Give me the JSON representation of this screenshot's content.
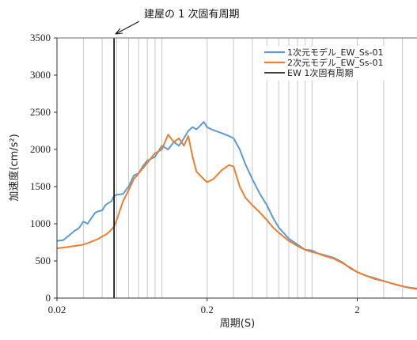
{
  "chart_data": {
    "type": "line",
    "xscale": "log",
    "xlim": [
      0.02,
      5
    ],
    "ylim": [
      0,
      3500
    ],
    "xticks": [
      0.02,
      0.2,
      2
    ],
    "xtick_labels": [
      "0.02",
      "0.2",
      "2"
    ],
    "yticks": [
      0,
      500,
      1000,
      1500,
      2000,
      2500,
      3000,
      3500
    ],
    "xlabel": "周期(S)",
    "ylabel": "加速度(cm/s²)",
    "grid": "vertical log gridlines",
    "legend_position": "top-right",
    "annotation": {
      "text": "建屋の 1 次固有周期",
      "points_to": 0.048
    },
    "vline": {
      "name": "EW 1次固有周期",
      "x": 0.048,
      "color": "#000000"
    },
    "series": [
      {
        "name": "1次元モデル_EW_Ss-01",
        "color": "#5B9BD5",
        "points": [
          [
            0.02,
            770
          ],
          [
            0.022,
            780
          ],
          [
            0.024,
            840
          ],
          [
            0.026,
            900
          ],
          [
            0.028,
            940
          ],
          [
            0.03,
            1030
          ],
          [
            0.032,
            1000
          ],
          [
            0.034,
            1080
          ],
          [
            0.036,
            1150
          ],
          [
            0.038,
            1170
          ],
          [
            0.04,
            1180
          ],
          [
            0.042,
            1250
          ],
          [
            0.044,
            1280
          ],
          [
            0.046,
            1300
          ],
          [
            0.048,
            1370
          ],
          [
            0.05,
            1390
          ],
          [
            0.055,
            1400
          ],
          [
            0.06,
            1500
          ],
          [
            0.065,
            1650
          ],
          [
            0.07,
            1680
          ],
          [
            0.075,
            1780
          ],
          [
            0.08,
            1850
          ],
          [
            0.09,
            1900
          ],
          [
            0.1,
            2050
          ],
          [
            0.11,
            2000
          ],
          [
            0.12,
            2100
          ],
          [
            0.13,
            2050
          ],
          [
            0.14,
            2150
          ],
          [
            0.15,
            2250
          ],
          [
            0.16,
            2300
          ],
          [
            0.17,
            2270
          ],
          [
            0.18,
            2320
          ],
          [
            0.19,
            2370
          ],
          [
            0.2,
            2300
          ],
          [
            0.22,
            2260
          ],
          [
            0.25,
            2220
          ],
          [
            0.28,
            2180
          ],
          [
            0.3,
            2150
          ],
          [
            0.33,
            2000
          ],
          [
            0.36,
            1800
          ],
          [
            0.4,
            1600
          ],
          [
            0.45,
            1400
          ],
          [
            0.5,
            1250
          ],
          [
            0.55,
            1080
          ],
          [
            0.6,
            950
          ],
          [
            0.7,
            800
          ],
          [
            0.8,
            720
          ],
          [
            0.9,
            650
          ],
          [
            1.0,
            640
          ],
          [
            1.1,
            600
          ],
          [
            1.2,
            580
          ],
          [
            1.4,
            540
          ],
          [
            1.6,
            480
          ],
          [
            1.8,
            400
          ],
          [
            2.0,
            350
          ],
          [
            2.3,
            300
          ],
          [
            2.6,
            270
          ],
          [
            3.0,
            230
          ],
          [
            3.5,
            190
          ],
          [
            4.0,
            160
          ],
          [
            4.5,
            135
          ],
          [
            5.0,
            120
          ]
        ]
      },
      {
        "name": "2次元モデル_EW_Ss-01",
        "color": "#ED7D31",
        "points": [
          [
            0.02,
            670
          ],
          [
            0.022,
            680
          ],
          [
            0.024,
            690
          ],
          [
            0.026,
            700
          ],
          [
            0.028,
            710
          ],
          [
            0.03,
            720
          ],
          [
            0.032,
            740
          ],
          [
            0.034,
            760
          ],
          [
            0.036,
            780
          ],
          [
            0.038,
            800
          ],
          [
            0.04,
            830
          ],
          [
            0.042,
            850
          ],
          [
            0.044,
            880
          ],
          [
            0.046,
            920
          ],
          [
            0.048,
            960
          ],
          [
            0.05,
            1050
          ],
          [
            0.055,
            1300
          ],
          [
            0.06,
            1450
          ],
          [
            0.065,
            1600
          ],
          [
            0.07,
            1680
          ],
          [
            0.075,
            1750
          ],
          [
            0.08,
            1820
          ],
          [
            0.09,
            1950
          ],
          [
            0.1,
            2000
          ],
          [
            0.11,
            2200
          ],
          [
            0.12,
            2100
          ],
          [
            0.13,
            2150
          ],
          [
            0.14,
            2050
          ],
          [
            0.15,
            2180
          ],
          [
            0.16,
            1900
          ],
          [
            0.17,
            1700
          ],
          [
            0.18,
            1650
          ],
          [
            0.19,
            1600
          ],
          [
            0.2,
            1560
          ],
          [
            0.22,
            1600
          ],
          [
            0.25,
            1720
          ],
          [
            0.28,
            1790
          ],
          [
            0.3,
            1770
          ],
          [
            0.33,
            1500
          ],
          [
            0.36,
            1350
          ],
          [
            0.4,
            1250
          ],
          [
            0.45,
            1150
          ],
          [
            0.5,
            1050
          ],
          [
            0.55,
            950
          ],
          [
            0.6,
            880
          ],
          [
            0.7,
            770
          ],
          [
            0.8,
            700
          ],
          [
            0.9,
            650
          ],
          [
            1.0,
            620
          ],
          [
            1.1,
            600
          ],
          [
            1.2,
            570
          ],
          [
            1.4,
            530
          ],
          [
            1.6,
            470
          ],
          [
            1.8,
            410
          ],
          [
            2.0,
            350
          ],
          [
            2.3,
            300
          ],
          [
            2.6,
            260
          ],
          [
            3.0,
            230
          ],
          [
            3.5,
            190
          ],
          [
            4.0,
            160
          ],
          [
            4.5,
            140
          ],
          [
            5.0,
            130
          ]
        ]
      }
    ]
  }
}
